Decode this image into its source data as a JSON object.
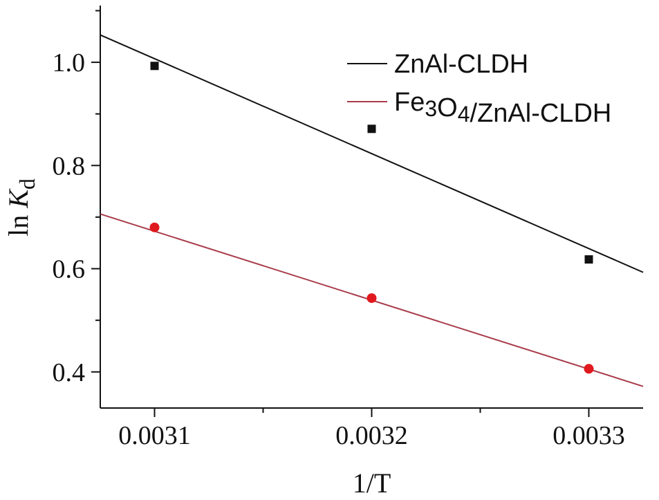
{
  "chart_data": {
    "type": "scatter",
    "xlabel": "1/T",
    "ylabel_prefix": "ln ",
    "ylabel_italic": "K",
    "ylabel_sub": "d",
    "xlim": [
      0.003075,
      0.003325
    ],
    "ylim": [
      0.33,
      1.11
    ],
    "x_ticks": [
      0.0031,
      0.0032,
      0.0033
    ],
    "x_tick_labels": [
      "0.0031",
      "0.0032",
      "0.0033"
    ],
    "x_minor_ticks": [
      0.00315,
      0.00325
    ],
    "y_ticks": [
      0.4,
      0.6,
      0.8,
      1.0
    ],
    "y_tick_labels": [
      "0.4",
      "0.6",
      "0.8",
      "1.0"
    ],
    "y_minor_ticks": [
      0.5,
      0.7,
      0.9,
      1.1
    ],
    "grid": false,
    "legend_position": "top-right",
    "series": [
      {
        "name": "ZnAl-CLDH",
        "legend_label": "ZnAl-CLDH",
        "color": "#111111",
        "marker": "square",
        "points": [
          {
            "x": 0.0031,
            "y": 0.993
          },
          {
            "x": 0.0032,
            "y": 0.871
          },
          {
            "x": 0.0033,
            "y": 0.618
          }
        ],
        "fit_line": {
          "x": [
            0.003075,
            0.003325
          ],
          "y": [
            1.053,
            0.593
          ]
        }
      },
      {
        "name": "Fe3O4/ZnAl-CLDH",
        "legend_label_parts": [
          {
            "text": "Fe",
            "sub": false
          },
          {
            "text": "3",
            "sub": true
          },
          {
            "text": "O",
            "sub": false
          },
          {
            "text": "4",
            "sub": true
          },
          {
            "text": "/ZnAl-CLDH",
            "sub": false
          }
        ],
        "color": "#e0191e",
        "line_color": "#a83a4a",
        "marker": "circle",
        "points": [
          {
            "x": 0.0031,
            "y": 0.68
          },
          {
            "x": 0.0032,
            "y": 0.543
          },
          {
            "x": 0.0033,
            "y": 0.406
          }
        ],
        "fit_line": {
          "x": [
            0.003075,
            0.003325
          ],
          "y": [
            0.706,
            0.372
          ]
        }
      }
    ]
  }
}
